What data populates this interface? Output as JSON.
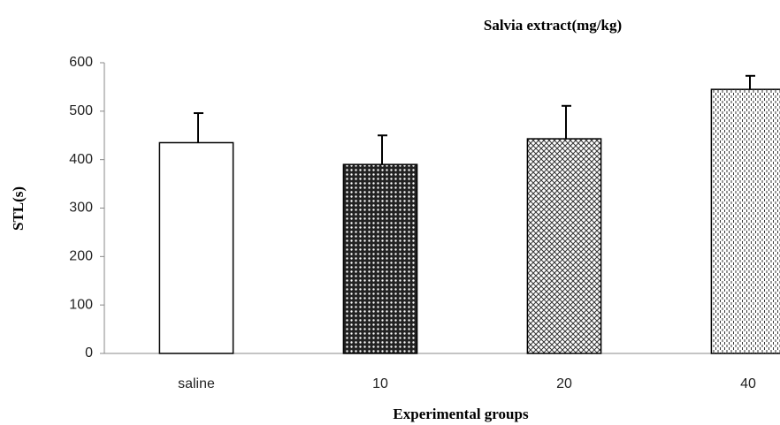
{
  "chart_data": {
    "type": "bar",
    "title": "Salvia extract(mg/kg)",
    "x_label": "Experimental groups",
    "y_label": "STL(s)",
    "categories": [
      "saline",
      "10",
      "20",
      "40"
    ],
    "values": [
      435,
      390,
      443,
      545
    ],
    "errors": [
      61,
      60,
      68,
      28
    ],
    "patterns": [
      "none",
      "dots",
      "crosshatch",
      "dashes"
    ],
    "color": "#000000",
    "ylim": [
      0,
      600
    ],
    "yticks": [
      0,
      100,
      200,
      300,
      400,
      500,
      600
    ],
    "grid": false
  }
}
